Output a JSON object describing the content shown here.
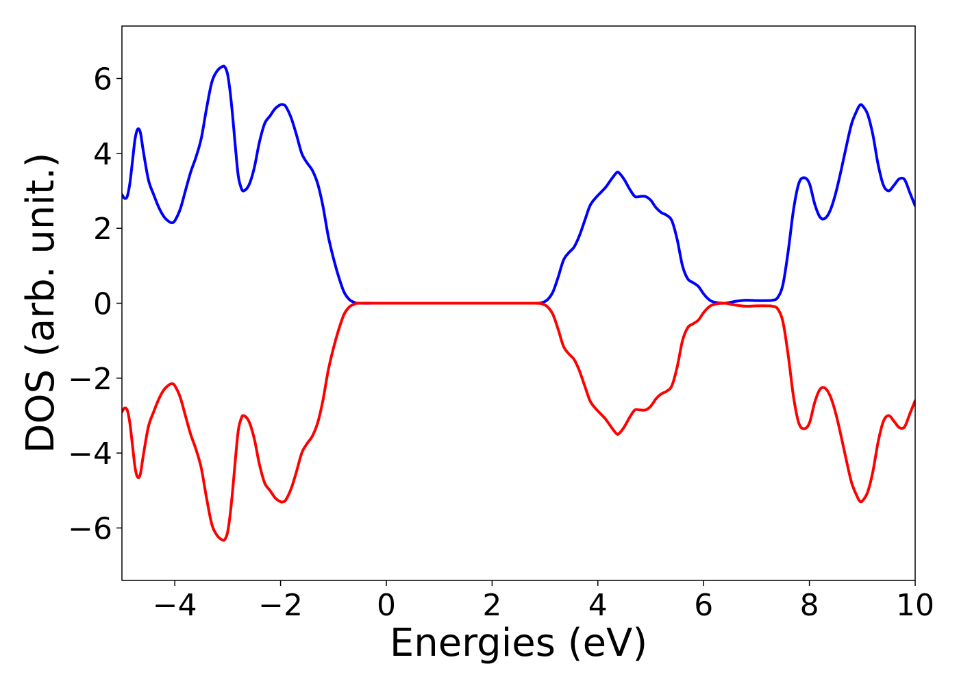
{
  "chart_data": {
    "type": "line",
    "title": "",
    "xlabel": "Energies (eV)",
    "ylabel": "DOS (arb. unit.)",
    "xlim": [
      -5,
      10
    ],
    "ylim": [
      -7.4,
      7.4
    ],
    "xticks": [
      -4,
      -2,
      0,
      2,
      4,
      6,
      8,
      10
    ],
    "xtick_labels": [
      "−4",
      "−2",
      "0",
      "2",
      "4",
      "6",
      "8",
      "10"
    ],
    "yticks": [
      -6,
      -4,
      -2,
      0,
      2,
      4,
      6
    ],
    "ytick_labels": [
      "−6",
      "−4",
      "−2",
      "0",
      "2",
      "4",
      "6"
    ],
    "grid": false,
    "legend": "none",
    "series": [
      {
        "color": "#0000ff",
        "points": [
          [
            -5.0,
            2.9
          ],
          [
            -4.95,
            2.8
          ],
          [
            -4.9,
            2.85
          ],
          [
            -4.85,
            3.2
          ],
          [
            -4.8,
            3.8
          ],
          [
            -4.75,
            4.4
          ],
          [
            -4.7,
            4.65
          ],
          [
            -4.65,
            4.55
          ],
          [
            -4.6,
            4.1
          ],
          [
            -4.5,
            3.3
          ],
          [
            -4.4,
            2.9
          ],
          [
            -4.3,
            2.55
          ],
          [
            -4.2,
            2.3
          ],
          [
            -4.1,
            2.17
          ],
          [
            -4.05,
            2.15
          ],
          [
            -4.0,
            2.2
          ],
          [
            -3.9,
            2.5
          ],
          [
            -3.8,
            3.0
          ],
          [
            -3.7,
            3.5
          ],
          [
            -3.6,
            3.9
          ],
          [
            -3.5,
            4.4
          ],
          [
            -3.4,
            5.2
          ],
          [
            -3.3,
            5.9
          ],
          [
            -3.2,
            6.2
          ],
          [
            -3.1,
            6.32
          ],
          [
            -3.05,
            6.3
          ],
          [
            -3.0,
            6.1
          ],
          [
            -2.95,
            5.6
          ],
          [
            -2.9,
            4.9
          ],
          [
            -2.85,
            4.1
          ],
          [
            -2.8,
            3.4
          ],
          [
            -2.75,
            3.1
          ],
          [
            -2.7,
            3.0
          ],
          [
            -2.6,
            3.15
          ],
          [
            -2.5,
            3.6
          ],
          [
            -2.4,
            4.3
          ],
          [
            -2.3,
            4.8
          ],
          [
            -2.2,
            5.0
          ],
          [
            -2.1,
            5.2
          ],
          [
            -2.0,
            5.3
          ],
          [
            -1.95,
            5.3
          ],
          [
            -1.9,
            5.25
          ],
          [
            -1.8,
            4.95
          ],
          [
            -1.7,
            4.5
          ],
          [
            -1.6,
            4.0
          ],
          [
            -1.5,
            3.75
          ],
          [
            -1.4,
            3.55
          ],
          [
            -1.3,
            3.2
          ],
          [
            -1.2,
            2.6
          ],
          [
            -1.1,
            1.8
          ],
          [
            -1.0,
            1.2
          ],
          [
            -0.9,
            0.7
          ],
          [
            -0.8,
            0.3
          ],
          [
            -0.7,
            0.1
          ],
          [
            -0.6,
            0.02
          ],
          [
            -0.5,
            0.0
          ],
          [
            0.0,
            0.0
          ],
          [
            1.0,
            0.0
          ],
          [
            2.0,
            0.0
          ],
          [
            2.8,
            0.0
          ],
          [
            2.95,
            0.02
          ],
          [
            3.05,
            0.1
          ],
          [
            3.15,
            0.3
          ],
          [
            3.25,
            0.7
          ],
          [
            3.35,
            1.15
          ],
          [
            3.45,
            1.35
          ],
          [
            3.55,
            1.5
          ],
          [
            3.65,
            1.8
          ],
          [
            3.75,
            2.2
          ],
          [
            3.85,
            2.6
          ],
          [
            3.95,
            2.8
          ],
          [
            4.05,
            2.95
          ],
          [
            4.15,
            3.1
          ],
          [
            4.25,
            3.3
          ],
          [
            4.35,
            3.48
          ],
          [
            4.4,
            3.48
          ],
          [
            4.5,
            3.3
          ],
          [
            4.6,
            3.05
          ],
          [
            4.7,
            2.85
          ],
          [
            4.8,
            2.85
          ],
          [
            4.9,
            2.85
          ],
          [
            5.0,
            2.75
          ],
          [
            5.1,
            2.55
          ],
          [
            5.2,
            2.42
          ],
          [
            5.3,
            2.35
          ],
          [
            5.4,
            2.2
          ],
          [
            5.5,
            1.7
          ],
          [
            5.6,
            1.0
          ],
          [
            5.7,
            0.65
          ],
          [
            5.8,
            0.55
          ],
          [
            5.9,
            0.45
          ],
          [
            6.0,
            0.25
          ],
          [
            6.1,
            0.1
          ],
          [
            6.2,
            0.03
          ],
          [
            6.4,
            0.0
          ],
          [
            6.6,
            0.05
          ],
          [
            6.8,
            0.08
          ],
          [
            7.0,
            0.07
          ],
          [
            7.2,
            0.07
          ],
          [
            7.3,
            0.08
          ],
          [
            7.4,
            0.15
          ],
          [
            7.5,
            0.5
          ],
          [
            7.6,
            1.4
          ],
          [
            7.7,
            2.5
          ],
          [
            7.8,
            3.2
          ],
          [
            7.9,
            3.35
          ],
          [
            8.0,
            3.2
          ],
          [
            8.1,
            2.65
          ],
          [
            8.2,
            2.3
          ],
          [
            8.3,
            2.27
          ],
          [
            8.4,
            2.5
          ],
          [
            8.5,
            2.95
          ],
          [
            8.6,
            3.55
          ],
          [
            8.7,
            4.2
          ],
          [
            8.8,
            4.8
          ],
          [
            8.9,
            5.15
          ],
          [
            8.95,
            5.28
          ],
          [
            9.0,
            5.28
          ],
          [
            9.1,
            5.05
          ],
          [
            9.2,
            4.5
          ],
          [
            9.3,
            3.7
          ],
          [
            9.4,
            3.15
          ],
          [
            9.5,
            3.0
          ],
          [
            9.6,
            3.15
          ],
          [
            9.7,
            3.32
          ],
          [
            9.8,
            3.3
          ],
          [
            9.9,
            2.95
          ],
          [
            10.0,
            2.6
          ]
        ]
      },
      {
        "color": "#ff0000",
        "points": [
          [
            -5.0,
            -2.9
          ],
          [
            -4.95,
            -2.8
          ],
          [
            -4.9,
            -2.85
          ],
          [
            -4.85,
            -3.2
          ],
          [
            -4.8,
            -3.8
          ],
          [
            -4.75,
            -4.4
          ],
          [
            -4.7,
            -4.65
          ],
          [
            -4.65,
            -4.55
          ],
          [
            -4.6,
            -4.1
          ],
          [
            -4.5,
            -3.3
          ],
          [
            -4.4,
            -2.9
          ],
          [
            -4.3,
            -2.55
          ],
          [
            -4.2,
            -2.3
          ],
          [
            -4.1,
            -2.17
          ],
          [
            -4.05,
            -2.15
          ],
          [
            -4.0,
            -2.2
          ],
          [
            -3.9,
            -2.5
          ],
          [
            -3.8,
            -3.0
          ],
          [
            -3.7,
            -3.5
          ],
          [
            -3.6,
            -3.9
          ],
          [
            -3.5,
            -4.4
          ],
          [
            -3.4,
            -5.2
          ],
          [
            -3.3,
            -5.9
          ],
          [
            -3.2,
            -6.2
          ],
          [
            -3.1,
            -6.32
          ],
          [
            -3.05,
            -6.3
          ],
          [
            -3.0,
            -6.1
          ],
          [
            -2.95,
            -5.6
          ],
          [
            -2.9,
            -4.9
          ],
          [
            -2.85,
            -4.1
          ],
          [
            -2.8,
            -3.4
          ],
          [
            -2.75,
            -3.1
          ],
          [
            -2.7,
            -3.0
          ],
          [
            -2.6,
            -3.15
          ],
          [
            -2.5,
            -3.6
          ],
          [
            -2.4,
            -4.3
          ],
          [
            -2.3,
            -4.8
          ],
          [
            -2.2,
            -5.0
          ],
          [
            -2.1,
            -5.2
          ],
          [
            -2.0,
            -5.3
          ],
          [
            -1.95,
            -5.3
          ],
          [
            -1.9,
            -5.25
          ],
          [
            -1.8,
            -4.95
          ],
          [
            -1.7,
            -4.5
          ],
          [
            -1.6,
            -4.0
          ],
          [
            -1.5,
            -3.75
          ],
          [
            -1.4,
            -3.55
          ],
          [
            -1.3,
            -3.2
          ],
          [
            -1.2,
            -2.6
          ],
          [
            -1.1,
            -1.8
          ],
          [
            -1.0,
            -1.2
          ],
          [
            -0.9,
            -0.7
          ],
          [
            -0.8,
            -0.3
          ],
          [
            -0.7,
            -0.1
          ],
          [
            -0.6,
            -0.02
          ],
          [
            -0.5,
            0.0
          ],
          [
            0.0,
            0.0
          ],
          [
            1.0,
            0.0
          ],
          [
            2.0,
            0.0
          ],
          [
            2.8,
            0.0
          ],
          [
            2.95,
            -0.02
          ],
          [
            3.05,
            -0.1
          ],
          [
            3.15,
            -0.3
          ],
          [
            3.25,
            -0.7
          ],
          [
            3.35,
            -1.15
          ],
          [
            3.45,
            -1.35
          ],
          [
            3.55,
            -1.5
          ],
          [
            3.65,
            -1.8
          ],
          [
            3.75,
            -2.2
          ],
          [
            3.85,
            -2.6
          ],
          [
            3.95,
            -2.8
          ],
          [
            4.05,
            -2.95
          ],
          [
            4.15,
            -3.1
          ],
          [
            4.25,
            -3.3
          ],
          [
            4.35,
            -3.48
          ],
          [
            4.4,
            -3.48
          ],
          [
            4.5,
            -3.3
          ],
          [
            4.6,
            -3.05
          ],
          [
            4.7,
            -2.85
          ],
          [
            4.8,
            -2.85
          ],
          [
            4.9,
            -2.85
          ],
          [
            5.0,
            -2.75
          ],
          [
            5.1,
            -2.55
          ],
          [
            5.2,
            -2.42
          ],
          [
            5.3,
            -2.35
          ],
          [
            5.4,
            -2.2
          ],
          [
            5.5,
            -1.7
          ],
          [
            5.6,
            -1.0
          ],
          [
            5.7,
            -0.65
          ],
          [
            5.8,
            -0.55
          ],
          [
            5.9,
            -0.45
          ],
          [
            6.0,
            -0.25
          ],
          [
            6.1,
            -0.1
          ],
          [
            6.2,
            -0.03
          ],
          [
            6.4,
            0.0
          ],
          [
            6.6,
            -0.05
          ],
          [
            6.8,
            -0.08
          ],
          [
            7.0,
            -0.07
          ],
          [
            7.2,
            -0.07
          ],
          [
            7.3,
            -0.08
          ],
          [
            7.4,
            -0.15
          ],
          [
            7.5,
            -0.5
          ],
          [
            7.6,
            -1.4
          ],
          [
            7.7,
            -2.5
          ],
          [
            7.8,
            -3.2
          ],
          [
            7.9,
            -3.35
          ],
          [
            8.0,
            -3.2
          ],
          [
            8.1,
            -2.65
          ],
          [
            8.2,
            -2.3
          ],
          [
            8.3,
            -2.27
          ],
          [
            8.4,
            -2.5
          ],
          [
            8.5,
            -2.95
          ],
          [
            8.6,
            -3.55
          ],
          [
            8.7,
            -4.2
          ],
          [
            8.8,
            -4.8
          ],
          [
            8.9,
            -5.15
          ],
          [
            8.95,
            -5.28
          ],
          [
            9.0,
            -5.28
          ],
          [
            9.1,
            -5.05
          ],
          [
            9.2,
            -4.5
          ],
          [
            9.3,
            -3.7
          ],
          [
            9.4,
            -3.15
          ],
          [
            9.5,
            -3.0
          ],
          [
            9.6,
            -3.15
          ],
          [
            9.7,
            -3.32
          ],
          [
            9.8,
            -3.3
          ],
          [
            9.9,
            -2.95
          ],
          [
            10.0,
            -2.6
          ]
        ]
      }
    ]
  }
}
